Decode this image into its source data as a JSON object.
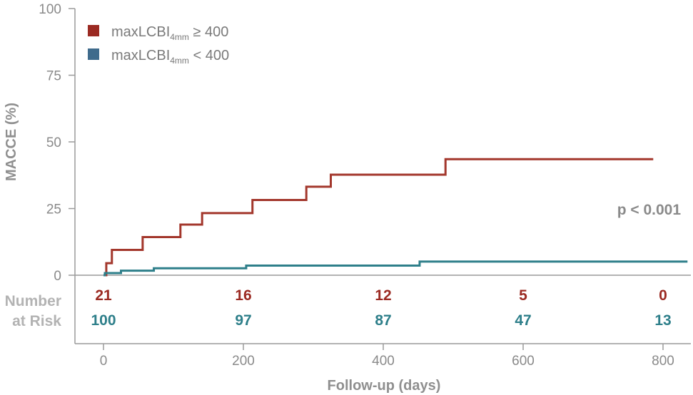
{
  "chart_data": {
    "type": "line",
    "subtype": "step (Kaplan-Meier)",
    "title": "",
    "xlabel": "Follow-up (days)",
    "ylabel": "MACCE (%)",
    "xlim": [
      -30,
      835
    ],
    "ylim": [
      0,
      100
    ],
    "xticks": [
      0,
      200,
      400,
      600,
      800
    ],
    "yticks": [
      0,
      25,
      50,
      75,
      100
    ],
    "grid": false,
    "legend": {
      "placement": "top-left",
      "entries": [
        {
          "prefix": "maxLCBI",
          "sub": "4mm",
          "suffix": " ≥ 400",
          "color": "#9b2a22"
        },
        {
          "prefix": "maxLCBI",
          "sub": "4mm",
          "suffix": " < 400",
          "color": "#3f6b8c"
        }
      ]
    },
    "series": [
      {
        "color": "#a3372c",
        "x": [
          2,
          4,
          12,
          56,
          110,
          141,
          213,
          290,
          325,
          489,
          786
        ],
        "y": [
          0,
          4.5,
          9.5,
          14.3,
          19.0,
          23.3,
          28.2,
          33.2,
          37.7,
          43.5,
          43.5
        ]
      },
      {
        "color": "#2e7f8a",
        "x": [
          0,
          2,
          25,
          72,
          204,
          452,
          835
        ],
        "y": [
          0,
          0.8,
          1.7,
          2.6,
          3.6,
          5.1,
          5.1
        ]
      }
    ],
    "annotations": [
      {
        "text": "p < 0.001",
        "x": 770,
        "y": 25
      }
    ]
  },
  "risk_table": {
    "label_line1": "Number",
    "label_line2": "at Risk",
    "x": [
      0,
      200,
      400,
      600,
      800
    ],
    "rows": [
      {
        "color": "#9b2a22",
        "values": [
          "21",
          "16",
          "12",
          "5",
          "0"
        ]
      },
      {
        "color": "#2e7f8a",
        "values": [
          "100",
          "97",
          "87",
          "47",
          "13"
        ]
      }
    ]
  }
}
